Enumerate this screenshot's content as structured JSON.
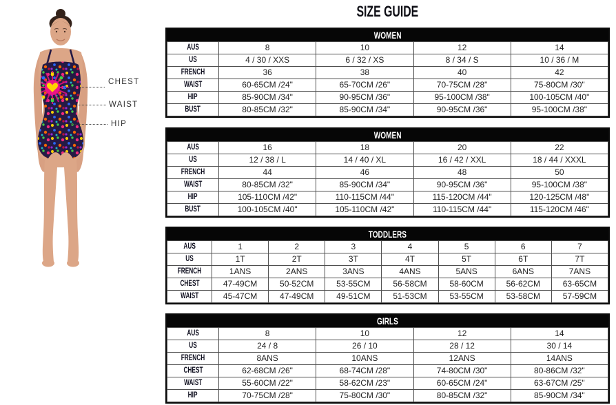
{
  "title": "SIZE GUIDE",
  "colors": {
    "header_bg": "#060606",
    "header_text": "#ffffff",
    "table_border": "#0a0a0a",
    "swimsuit_base": "#251a45",
    "swimsuit_accent_pink": "#ec1587",
    "swimsuit_accent_yellow": "#ffd400"
  },
  "figure": {
    "annotations": [
      {
        "label": "CHEST"
      },
      {
        "label": "WAIST"
      },
      {
        "label": "HIP"
      }
    ]
  },
  "tables": [
    {
      "header": "WOMEN",
      "rows": [
        {
          "label": "AUS",
          "values": [
            "8",
            "10",
            "12",
            "14"
          ]
        },
        {
          "label": "US",
          "values": [
            "4 / 30 / XXS",
            "6 / 32 / XS",
            "8 / 34 / S",
            "10 / 36 / M"
          ]
        },
        {
          "label": "FRENCH",
          "values": [
            "36",
            "38",
            "40",
            "42"
          ]
        },
        {
          "label": "WAIST",
          "values": [
            "60-65CM /24\"",
            "65-70CM /26\"",
            "70-75CM /28\"",
            "75-80CM /30\""
          ]
        },
        {
          "label": "HIP",
          "values": [
            "85-90CM /34\"",
            "90-95CM /36\"",
            "95-100CM /38\"",
            "100-105CM /40\""
          ]
        },
        {
          "label": "BUST",
          "values": [
            "80-85CM /32\"",
            "85-90CM /34\"",
            "90-95CM /36\"",
            "95-100CM /38\""
          ]
        }
      ]
    },
    {
      "header": "WOMEN",
      "rows": [
        {
          "label": "AUS",
          "values": [
            "16",
            "18",
            "20",
            "22"
          ]
        },
        {
          "label": "US",
          "values": [
            "12 / 38 / L",
            "14 / 40 / XL",
            "16 / 42 / XXL",
            "18 / 44 / XXXL"
          ]
        },
        {
          "label": "FRENCH",
          "values": [
            "44",
            "46",
            "48",
            "50"
          ]
        },
        {
          "label": "WAIST",
          "values": [
            "80-85CM /32\"",
            "85-90CM /34\"",
            "90-95CM /36\"",
            "95-100CM /38\""
          ]
        },
        {
          "label": "HIP",
          "values": [
            "105-110CM /42\"",
            "110-115CM /44\"",
            "115-120CM /44\"",
            "120-125CM /48\""
          ]
        },
        {
          "label": "BUST",
          "values": [
            "100-105CM /40\"",
            "105-110CM /42\"",
            "110-115CM /44\"",
            "115-120CM /46\""
          ]
        }
      ]
    },
    {
      "header": "TODDLERS",
      "rows": [
        {
          "label": "AUS",
          "values": [
            "1",
            "2",
            "3",
            "4",
            "5",
            "6",
            "7"
          ]
        },
        {
          "label": "US",
          "values": [
            "1T",
            "2T",
            "3T",
            "4T",
            "5T",
            "6T",
            "7T"
          ]
        },
        {
          "label": "FRENCH",
          "values": [
            "1ANS",
            "2ANS",
            "3ANS",
            "4ANS",
            "5ANS",
            "6ANS",
            "7ANS"
          ]
        },
        {
          "label": "CHEST",
          "values": [
            "47-49CM",
            "50-52CM",
            "53-55CM",
            "56-58CM",
            "58-60CM",
            "56-62CM",
            "63-65CM"
          ]
        },
        {
          "label": "WAIST",
          "values": [
            "45-47CM",
            "47-49CM",
            "49-51CM",
            "51-53CM",
            "53-55CM",
            "53-58CM",
            "57-59CM"
          ]
        }
      ]
    },
    {
      "header": "GIRLS",
      "rows": [
        {
          "label": "AUS",
          "values": [
            "8",
            "10",
            "12",
            "14"
          ]
        },
        {
          "label": "US",
          "values": [
            "24 / 8",
            "26 / 10",
            "28 / 12",
            "30 / 14"
          ]
        },
        {
          "label": "FRENCH",
          "values": [
            "8ANS",
            "10ANS",
            "12ANS",
            "14ANS"
          ]
        },
        {
          "label": "CHEST",
          "values": [
            "62-68CM /26\"",
            "68-74CM /28\"",
            "74-80CM /30\"",
            "80-86CM /32\""
          ]
        },
        {
          "label": "WAIST",
          "values": [
            "55-60CM /22\"",
            "58-62CM /23\"",
            "60-65CM /24\"",
            "63-67CM /25\""
          ]
        },
        {
          "label": "HIP",
          "values": [
            "70-75CM /28\"",
            "75-80CM /30\"",
            "80-85CM /32\"",
            "85-90CM /34\""
          ]
        }
      ]
    }
  ]
}
